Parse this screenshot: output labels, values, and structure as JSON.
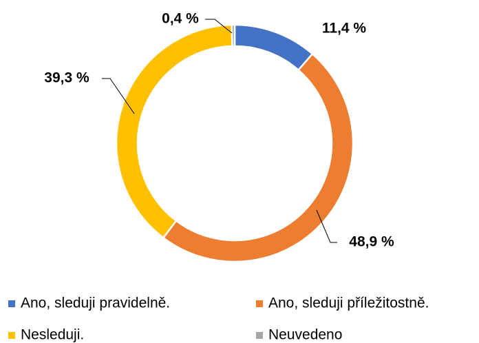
{
  "chart_data": {
    "type": "donut",
    "categories": [
      "Ano, sleduji pravidelně.",
      "Ano, sleduji příležitostně.",
      "Nesleduji.",
      "Neuvedeno"
    ],
    "values": [
      11.4,
      48.9,
      39.3,
      0.4
    ],
    "value_labels": [
      "11,4 %",
      "48,9 %",
      "39,3 %",
      "0,4 %"
    ],
    "colors": [
      "#4472c4",
      "#ed7d31",
      "#ffc000",
      "#a5a5a5"
    ]
  }
}
